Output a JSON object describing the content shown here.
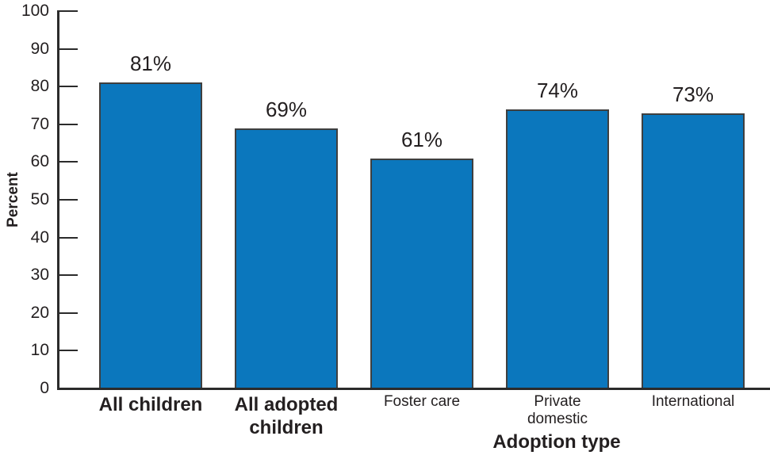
{
  "chart_data": {
    "type": "bar",
    "title": "",
    "categories": [
      "All children",
      "All adopted children",
      "Foster care",
      "Private domestic",
      "International"
    ],
    "category_lines": [
      [
        "All children"
      ],
      [
        "All adopted",
        "children"
      ],
      [
        "Foster care"
      ],
      [
        "Private",
        "domestic"
      ],
      [
        "International"
      ]
    ],
    "category_bold": [
      true,
      true,
      false,
      false,
      false
    ],
    "values": [
      81,
      69,
      61,
      74,
      73
    ],
    "value_labels": [
      "81%",
      "69%",
      "61%",
      "74%",
      "73%"
    ],
    "xlabel": "Adoption type",
    "ylabel": "Percent",
    "ylim": [
      0,
      100
    ],
    "ytick_interval": 10,
    "ytick_labels": [
      "0",
      "10",
      "20",
      "30",
      "40",
      "50",
      "60",
      "70",
      "80",
      "90",
      "100"
    ],
    "grid": "off",
    "legend": "none",
    "colors": {
      "bar_fill": "#0B77BD",
      "bar_border": "#3F3F3F",
      "axis": "#2B2B2B",
      "text": "#231F20"
    }
  }
}
